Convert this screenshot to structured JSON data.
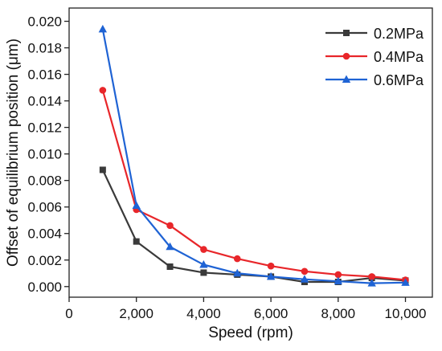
{
  "chart_data": {
    "type": "line",
    "xlabel": "Speed (rpm)",
    "ylabel": "Offset of equilibrium position (μm)",
    "xlim": [
      0,
      10800
    ],
    "ylim": [
      -0.0008,
      0.021
    ],
    "x_ticks": [
      0,
      2000,
      4000,
      6000,
      8000,
      10000
    ],
    "x_tick_labels": [
      "0",
      "2,000",
      "4,000",
      "6,000",
      "8,000",
      "10,000"
    ],
    "y_ticks": [
      0.0,
      0.002,
      0.004,
      0.006,
      0.008,
      0.01,
      0.012,
      0.014,
      0.016,
      0.018,
      0.02
    ],
    "y_tick_labels": [
      "0.000",
      "0.002",
      "0.004",
      "0.006",
      "0.008",
      "0.010",
      "0.012",
      "0.014",
      "0.016",
      "0.018",
      "0.020"
    ],
    "legend_position": "top-right",
    "grid": false,
    "x": [
      1000,
      2000,
      3000,
      4000,
      5000,
      6000,
      7000,
      8000,
      9000,
      10000
    ],
    "series": [
      {
        "name": "0.2MPa",
        "color": "#3a3a3a",
        "marker": "square",
        "values": [
          0.0088,
          0.0034,
          0.0015,
          0.00105,
          0.0009,
          0.00075,
          0.00035,
          0.00035,
          0.00065,
          0.00045
        ]
      },
      {
        "name": "0.4MPa",
        "color": "#e8262a",
        "marker": "circle",
        "values": [
          0.0148,
          0.0058,
          0.0046,
          0.0028,
          0.0021,
          0.00155,
          0.00115,
          0.0009,
          0.00075,
          0.0005
        ]
      },
      {
        "name": "0.6MPa",
        "color": "#1f63d4",
        "marker": "triangle",
        "values": [
          0.0194,
          0.0061,
          0.003,
          0.00165,
          0.001,
          0.00075,
          0.00055,
          0.0004,
          0.00025,
          0.0003
        ]
      }
    ]
  }
}
